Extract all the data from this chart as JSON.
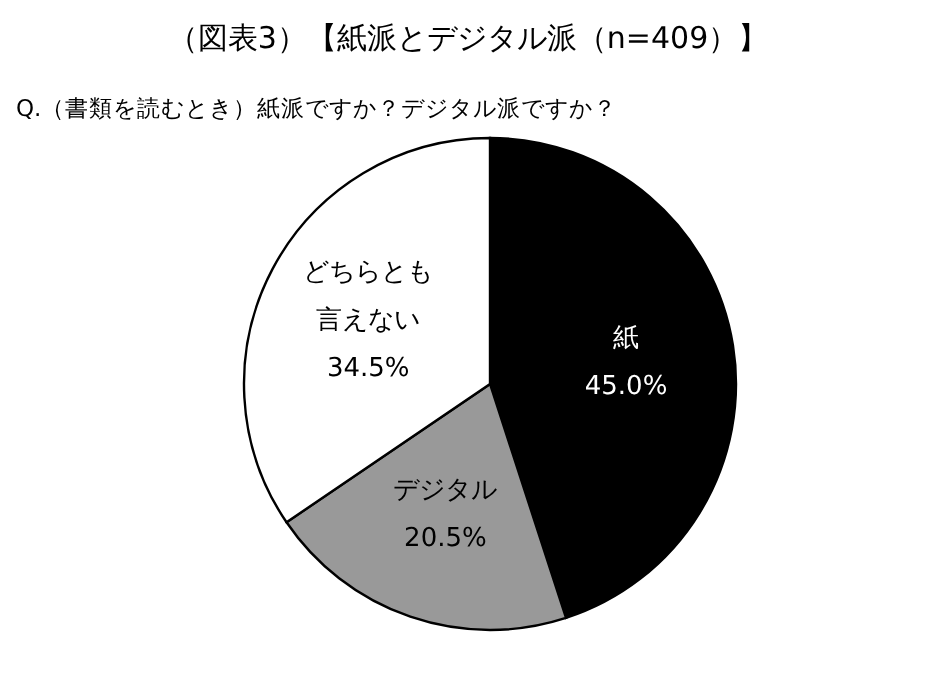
{
  "chart_data": {
    "type": "pie",
    "title": "（図表3）【紙派とデジタル派（n=409）】",
    "subtitle": "Q.（書類を読むとき）紙派ですか？デジタル派ですか？",
    "categories": [
      "紙",
      "デジタル",
      "どちらとも言えない"
    ],
    "values": [
      45.0,
      20.5,
      34.5
    ],
    "colors": [
      "#000000",
      "#999999",
      "#ffffff"
    ],
    "value_labels": [
      "45.0%",
      "20.5%",
      "34.5%"
    ]
  }
}
